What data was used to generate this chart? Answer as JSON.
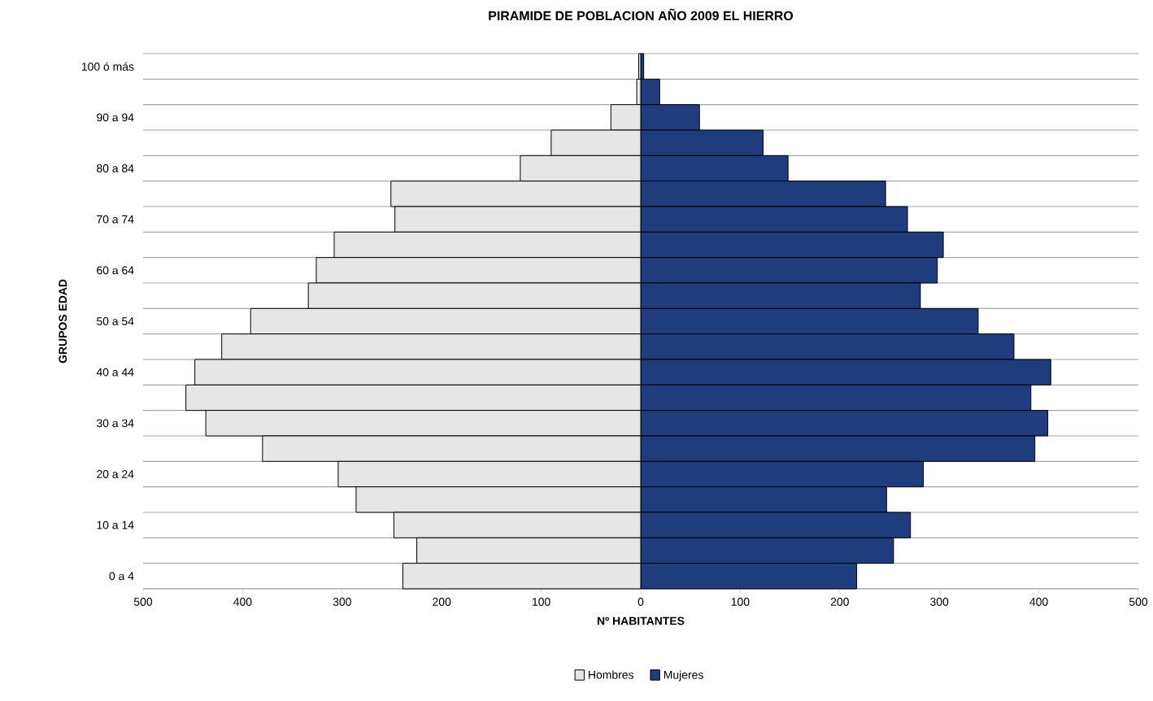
{
  "chart_data": {
    "type": "bar",
    "orientation": "horizontal",
    "title": "PIRAMIDE DE POBLACION AÑO 2009 EL HIERRO",
    "xlabel": "Nº HABITANTES",
    "ylabel": "GRUPOS EDAD",
    "categories": [
      "100 ó más",
      null,
      "90 a 94",
      null,
      "80 a 84",
      null,
      "70 a 74",
      null,
      "60 a 64",
      null,
      "50 a 54",
      null,
      "40 a 44",
      null,
      "30 a 34",
      null,
      "20 a 24",
      null,
      "10 a 14",
      null,
      "0 a 4"
    ],
    "series": [
      {
        "name": "Hombres",
        "color": "#e6e6e6",
        "values": [
          -2,
          -4,
          -30,
          -90,
          -121,
          -251,
          -247,
          -308,
          -326,
          -334,
          -392,
          -421,
          -448,
          -457,
          -437,
          -380,
          -304,
          -286,
          -248,
          -225,
          -239
        ]
      },
      {
        "name": "Mujeres",
        "color": "#1f3d7c",
        "values": [
          3,
          19,
          59,
          123,
          148,
          246,
          268,
          304,
          298,
          281,
          339,
          375,
          412,
          392,
          409,
          396,
          284,
          247,
          271,
          254,
          217
        ]
      }
    ],
    "xlim": [
      -500,
      500
    ],
    "xticks": [
      {
        "value": -500,
        "label": "500"
      },
      {
        "value": -400,
        "label": "400"
      },
      {
        "value": -300,
        "label": "300"
      },
      {
        "value": -200,
        "label": "200"
      },
      {
        "value": -100,
        "label": "100"
      },
      0,
      100,
      200,
      300,
      400,
      500
    ],
    "grid": "y",
    "legend": "bottom",
    "stacked": true
  }
}
